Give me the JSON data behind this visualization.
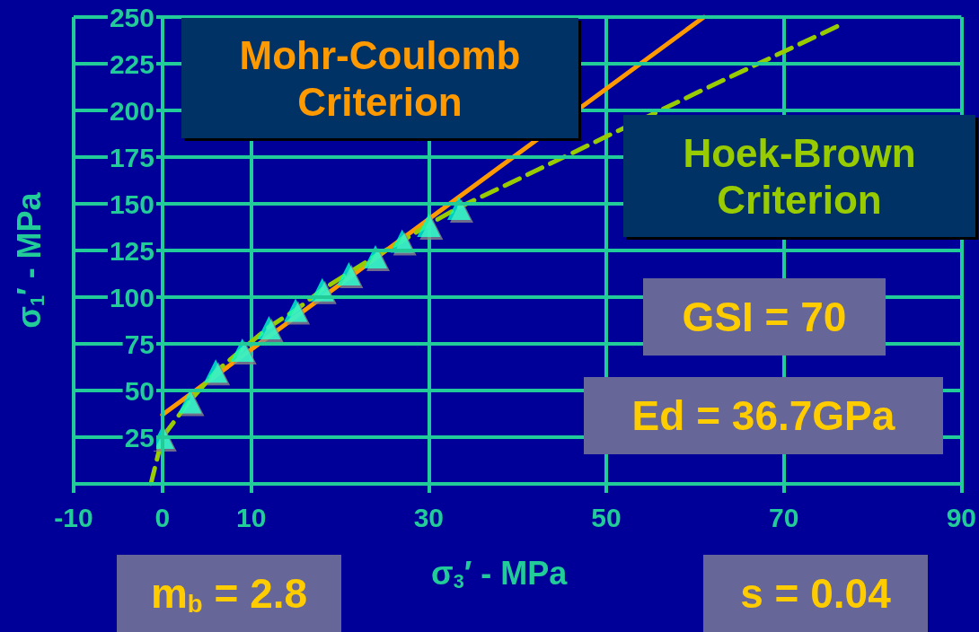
{
  "chart_data": {
    "type": "line",
    "xlabel": "σ$_{3}$′ - MPa",
    "ylabel": "σ$_{1}$′ - MPa",
    "xlim": [
      -10,
      90
    ],
    "xticks": [
      -10,
      0,
      10,
      30,
      50,
      70,
      90
    ],
    "ylim": [
      0,
      250
    ],
    "yticks": [
      {
        "value": 0,
        "label": null
      },
      25,
      50,
      75,
      100,
      125,
      150,
      175,
      200,
      225,
      250
    ],
    "grid": true,
    "legend": false,
    "series": [
      {
        "name": "Mohr-Coulomb Criterion",
        "color": "#ff9900",
        "line_style": "solid",
        "marker": "none",
        "x": [
          0,
          61
        ],
        "values": [
          37,
          250
        ]
      },
      {
        "name": "Hoek-Brown Criterion",
        "color": "#99cc00",
        "line_style": "dashed",
        "marker": "none",
        "x": [
          -1.3,
          0,
          3,
          6,
          9,
          12,
          15,
          18,
          21,
          24,
          27,
          30,
          33.4,
          40,
          50,
          60,
          76
        ],
        "values": [
          0,
          25,
          44,
          60,
          72,
          84,
          93,
          104,
          113,
          122,
          130,
          139,
          148,
          163,
          186,
          209,
          245
        ]
      },
      {
        "type": "scatter",
        "color": "#00ffcc",
        "marker": "triangle",
        "x": [
          0,
          3.1,
          6,
          9,
          12,
          15,
          18,
          21,
          24,
          27,
          30,
          33.4
        ],
        "values": [
          25,
          44,
          60.5,
          71.6,
          83.6,
          93,
          104,
          112.5,
          121.6,
          130,
          138.5,
          147.6
        ]
      }
    ],
    "annotations": [
      "GSI = 70",
      "Ed = 36.7GPa",
      "m$_{b}$ = 2.8",
      "s = 0.04"
    ]
  }
}
